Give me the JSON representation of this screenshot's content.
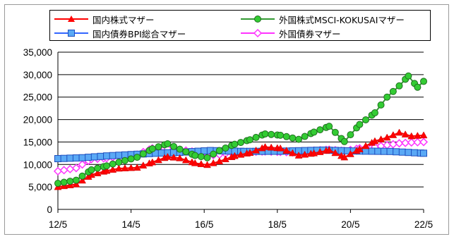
{
  "chart_data": {
    "type": "line",
    "x_ticks": [
      "12/5",
      "14/5",
      "16/5",
      "18/5",
      "20/5",
      "22/5"
    ],
    "x_range": [
      "2012-05",
      "2022-05"
    ],
    "ylim": [
      0,
      35000
    ],
    "y_ticks": [
      "0",
      "5,000",
      "10,000",
      "15,000",
      "20,000",
      "25,000",
      "30,000",
      "35,000"
    ],
    "grid": "horizontal",
    "legend_position": "top",
    "series": [
      {
        "name": "国内株式マザー",
        "color": "#ff0000",
        "marker": "triangle",
        "points": [
          [
            "2012-05",
            5000
          ],
          [
            "2012-11",
            5600
          ],
          [
            "2013-04",
            7700
          ],
          [
            "2013-09",
            8600
          ],
          [
            "2014-01",
            9100
          ],
          [
            "2014-07",
            9300
          ],
          [
            "2014-12",
            10500
          ],
          [
            "2015-05",
            11700
          ],
          [
            "2015-09",
            11400
          ],
          [
            "2016-02",
            10300
          ],
          [
            "2016-06",
            9900
          ],
          [
            "2016-10",
            10700
          ],
          [
            "2017-03",
            11900
          ],
          [
            "2017-08",
            12600
          ],
          [
            "2018-01",
            13900
          ],
          [
            "2018-06",
            13600
          ],
          [
            "2018-12",
            12000
          ],
          [
            "2019-05",
            12500
          ],
          [
            "2019-10",
            13200
          ],
          [
            "2020-03",
            11600
          ],
          [
            "2020-08",
            13400
          ],
          [
            "2021-01",
            15200
          ],
          [
            "2021-05",
            16000
          ],
          [
            "2021-09",
            17100
          ],
          [
            "2022-01",
            16300
          ],
          [
            "2022-05",
            16500
          ]
        ]
      },
      {
        "name": "外国株式MSCI-KOKUSAIマザー",
        "color": "#339933",
        "marker": "circle",
        "points": [
          [
            "2012-05",
            5800
          ],
          [
            "2012-11",
            6500
          ],
          [
            "2013-04",
            8800
          ],
          [
            "2013-09",
            9700
          ],
          [
            "2014-01",
            10500
          ],
          [
            "2014-07",
            11600
          ],
          [
            "2014-12",
            13500
          ],
          [
            "2015-05",
            14600
          ],
          [
            "2015-09",
            13400
          ],
          [
            "2016-02",
            12000
          ],
          [
            "2016-06",
            11500
          ],
          [
            "2016-10",
            13100
          ],
          [
            "2017-03",
            14500
          ],
          [
            "2017-08",
            15500
          ],
          [
            "2018-01",
            16800
          ],
          [
            "2018-06",
            16500
          ],
          [
            "2018-12",
            15600
          ],
          [
            "2019-05",
            17200
          ],
          [
            "2019-10",
            18500
          ],
          [
            "2020-03",
            15100
          ],
          [
            "2020-08",
            18900
          ],
          [
            "2021-01",
            21500
          ],
          [
            "2021-05",
            25000
          ],
          [
            "2021-09",
            27500
          ],
          [
            "2021-12",
            29700
          ],
          [
            "2022-03",
            27200
          ],
          [
            "2022-05",
            28500
          ]
        ]
      },
      {
        "name": "国内債券BPI総合マザー",
        "color": "#3366ff",
        "marker": "square",
        "points": [
          [
            "2012-05",
            11300
          ],
          [
            "2013-01",
            11500
          ],
          [
            "2013-09",
            11900
          ],
          [
            "2014-05",
            12200
          ],
          [
            "2015-01",
            12500
          ],
          [
            "2015-09",
            12700
          ],
          [
            "2016-07",
            13100
          ],
          [
            "2017-06",
            12900
          ],
          [
            "2018-06",
            12950
          ],
          [
            "2019-08",
            13200
          ],
          [
            "2020-06",
            13000
          ],
          [
            "2021-06",
            12900
          ],
          [
            "2022-05",
            12500
          ]
        ]
      },
      {
        "name": "外国債券マザー",
        "color": "#ff33ff",
        "marker": "diamond",
        "points": [
          [
            "2012-05",
            8500
          ],
          [
            "2012-11",
            9200
          ],
          [
            "2013-04",
            11200
          ],
          [
            "2013-09",
            11400
          ],
          [
            "2014-01",
            11800
          ],
          [
            "2014-07",
            12200
          ],
          [
            "2014-12",
            13600
          ],
          [
            "2015-05",
            13500
          ],
          [
            "2015-09",
            13300
          ],
          [
            "2016-02",
            12800
          ],
          [
            "2016-06",
            12000
          ],
          [
            "2016-10",
            12200
          ],
          [
            "2017-03",
            12700
          ],
          [
            "2017-08",
            12800
          ],
          [
            "2018-01",
            12900
          ],
          [
            "2018-06",
            12800
          ],
          [
            "2018-12",
            12600
          ],
          [
            "2019-05",
            13100
          ],
          [
            "2019-10",
            13300
          ],
          [
            "2020-03",
            13000
          ],
          [
            "2020-08",
            13600
          ],
          [
            "2021-01",
            13900
          ],
          [
            "2021-05",
            14300
          ],
          [
            "2021-09",
            14700
          ],
          [
            "2022-01",
            14900
          ],
          [
            "2022-05",
            15000
          ]
        ]
      }
    ]
  }
}
